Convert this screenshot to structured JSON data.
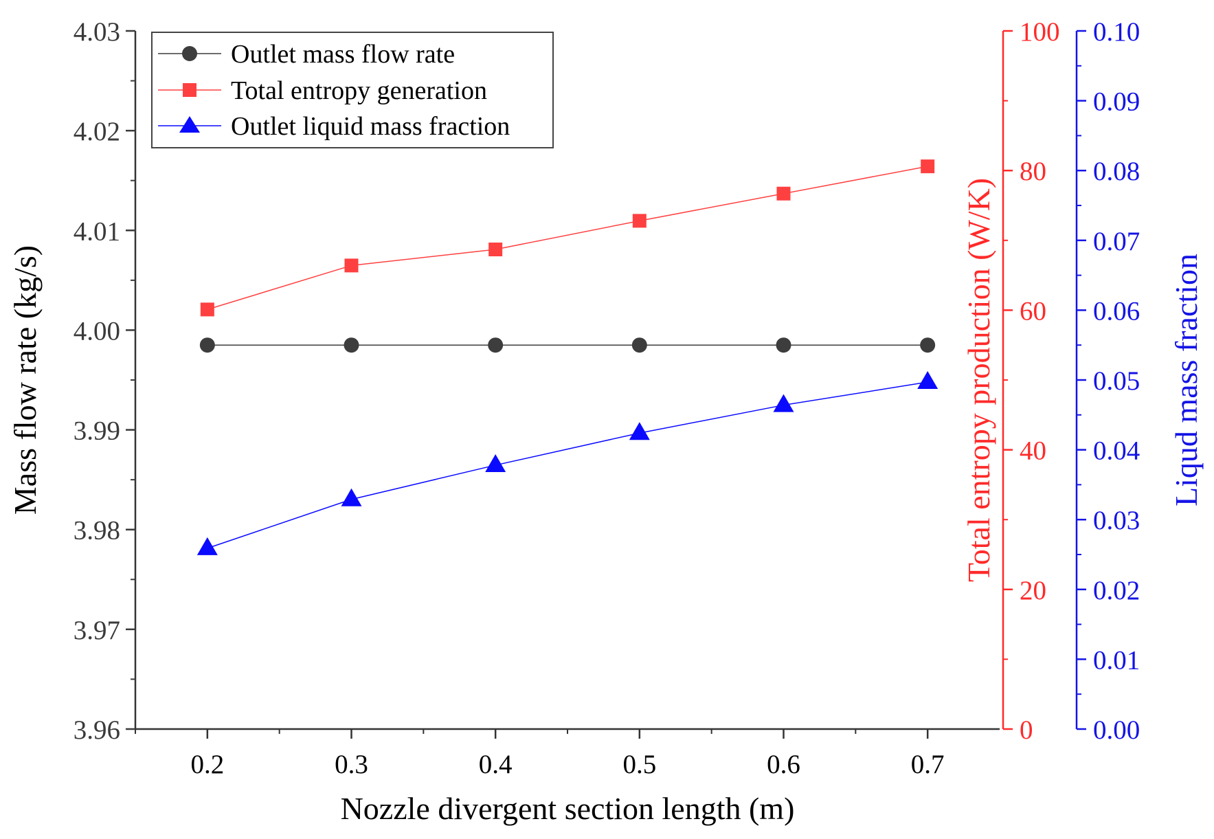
{
  "chart_data": {
    "type": "line",
    "x": [
      0.2,
      0.3,
      0.4,
      0.5,
      0.6,
      0.7
    ],
    "xlabel": "Nozzle divergent section length (m)",
    "xlim": [
      0.15,
      0.75
    ],
    "xticks": [
      "0.2",
      "0.3",
      "0.4",
      "0.5",
      "0.6",
      "0.7"
    ],
    "grid": false,
    "legend_position": "top-left",
    "axes": {
      "left": {
        "label": "Mass flow rate (kg/s)",
        "range": [
          3.96,
          4.03
        ],
        "ticks": [
          "3.96",
          "3.97",
          "3.98",
          "3.99",
          "4.00",
          "4.01",
          "4.02",
          "4.03"
        ],
        "color": "#3a3a3a"
      },
      "right1": {
        "label": "Total entropy production (W/K)",
        "range": [
          0,
          100
        ],
        "ticks": [
          "0",
          "20",
          "40",
          "60",
          "80",
          "100"
        ],
        "color": "#ff2a2a"
      },
      "right2": {
        "label": "Liqud mass fraction",
        "range": [
          0,
          0.1
        ],
        "ticks": [
          "0.00",
          "0.01",
          "0.02",
          "0.03",
          "0.04",
          "0.05",
          "0.06",
          "0.07",
          "0.08",
          "0.09",
          "0.10"
        ],
        "color": "#1414e6"
      }
    },
    "series": [
      {
        "name": "Outlet mass flow rate",
        "axis": "left",
        "marker": "circle",
        "color": "#3d3d3d",
        "values": [
          3.9985,
          3.9985,
          3.9985,
          3.9985,
          3.9985,
          3.9985
        ]
      },
      {
        "name": "Total entropy generation",
        "axis": "right1",
        "marker": "square",
        "color": "#ff4040",
        "values": [
          60.1,
          66.4,
          68.7,
          72.8,
          76.7,
          80.6
        ]
      },
      {
        "name": "Outlet liquid mass fraction",
        "axis": "right2",
        "marker": "triangle",
        "color": "#0a0aff",
        "values": [
          0.0259,
          0.0329,
          0.0378,
          0.0424,
          0.0464,
          0.0497
        ]
      }
    ]
  }
}
